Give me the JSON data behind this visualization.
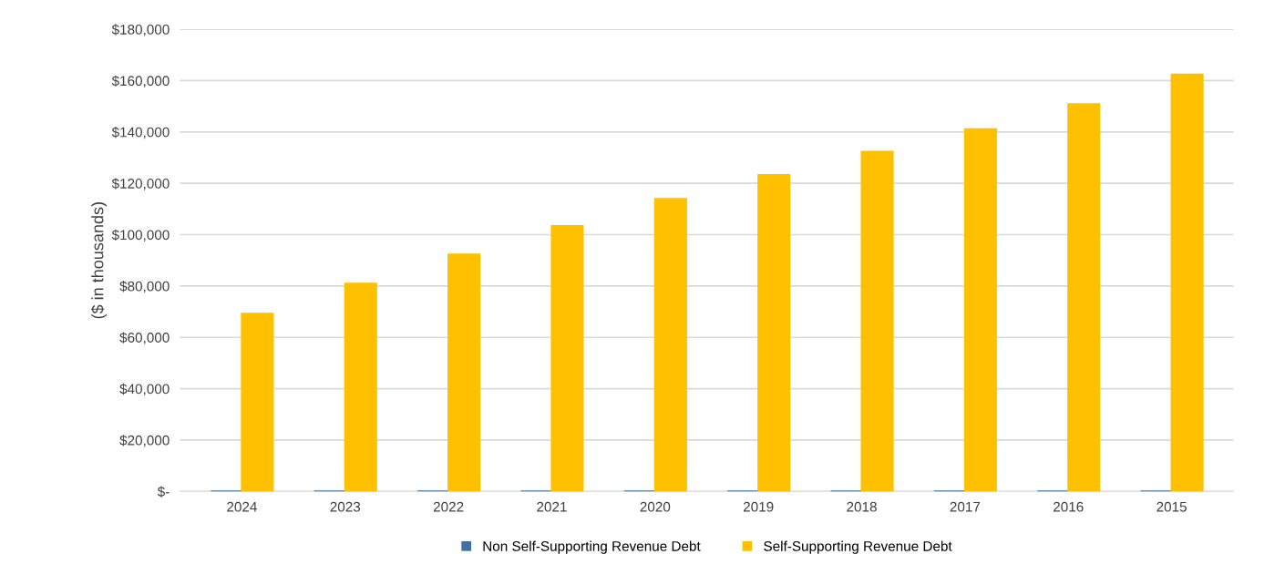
{
  "chart_data": {
    "type": "bar",
    "ylabel": "($ in thousands)",
    "categories": [
      "2024",
      "2023",
      "2022",
      "2021",
      "2020",
      "2019",
      "2018",
      "2017",
      "2016",
      "2015"
    ],
    "series": [
      {
        "name": "Non Self-Supporting Revenue Debt",
        "color": "#41719c",
        "values": [
          0,
          0,
          0,
          0,
          0,
          0,
          0,
          0,
          0,
          0
        ]
      },
      {
        "name": "Self-Supporting Revenue Debt",
        "color": "#ffc000",
        "values": [
          69200,
          80900,
          92300,
          103400,
          113900,
          123200,
          132300,
          141100,
          150800,
          162400
        ]
      }
    ],
    "ylim": [
      0,
      180000
    ],
    "yticks": [
      {
        "value": 0,
        "label": "$-"
      },
      {
        "value": 20000,
        "label": "$20,000"
      },
      {
        "value": 40000,
        "label": "$40,000"
      },
      {
        "value": 60000,
        "label": "$60,000"
      },
      {
        "value": 80000,
        "label": "$80,000"
      },
      {
        "value": 100000,
        "label": "$100,000"
      },
      {
        "value": 120000,
        "label": "$120,000"
      },
      {
        "value": 140000,
        "label": "$140,000"
      },
      {
        "value": 160000,
        "label": "$160,000"
      },
      {
        "value": 180000,
        "label": "$180,000"
      }
    ],
    "grid": "y",
    "legend": "bottom"
  }
}
